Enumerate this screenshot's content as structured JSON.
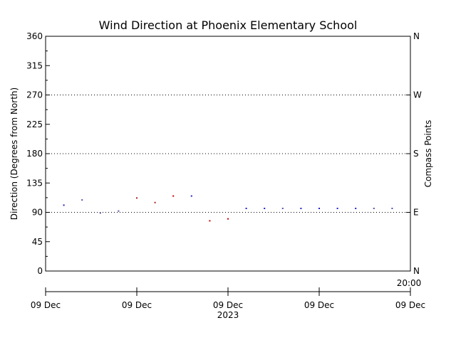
{
  "chart_data": {
    "type": "scatter",
    "title": "Wind Direction at Phoenix Elementary School",
    "ylabel": "Direction (Degrees from North)",
    "y2label": "Compass Points",
    "ylim": [
      0,
      360
    ],
    "yticks": [
      "0",
      "45",
      "90",
      "135",
      "180",
      "225",
      "270",
      "315",
      "360"
    ],
    "compass_ticks": [
      {
        "value": 0,
        "label": "N"
      },
      {
        "value": 90,
        "label": "E"
      },
      {
        "value": 180,
        "label": "S"
      },
      {
        "value": 270,
        "label": "W"
      },
      {
        "value": 360,
        "label": "N"
      }
    ],
    "gridlines_y": [
      90,
      180,
      270
    ],
    "x_tick_labels": [
      "09 Dec",
      "09 Dec",
      "09 Dec",
      "09 Dec",
      "09 Dec"
    ],
    "x_year_label": "2023",
    "x_time_label": "20:00",
    "xlim": [
      0,
      20
    ],
    "points": [
      {
        "x": 1,
        "y": 101,
        "color": "#2222cc"
      },
      {
        "x": 2,
        "y": 109,
        "color": "#5555aa"
      },
      {
        "x": 3,
        "y": 89,
        "color": "#5555aa"
      },
      {
        "x": 4,
        "y": 92,
        "color": "#5555aa"
      },
      {
        "x": 5,
        "y": 112,
        "color": "#aa2222"
      },
      {
        "x": 6,
        "y": 105,
        "color": "#aa2222"
      },
      {
        "x": 7,
        "y": 115,
        "color": "#cc0000"
      },
      {
        "x": 8,
        "y": 115,
        "color": "#2222cc"
      },
      {
        "x": 9,
        "y": 77,
        "color": "#cc0000"
      },
      {
        "x": 10,
        "y": 80,
        "color": "#cc0000"
      },
      {
        "x": 11,
        "y": 96,
        "color": "#2222cc"
      },
      {
        "x": 12,
        "y": 96,
        "color": "#2222cc"
      },
      {
        "x": 13,
        "y": 96,
        "color": "#5555aa"
      },
      {
        "x": 14,
        "y": 96,
        "color": "#2222cc"
      },
      {
        "x": 15,
        "y": 96,
        "color": "#2222cc"
      },
      {
        "x": 16,
        "y": 96,
        "color": "#2222cc"
      },
      {
        "x": 17,
        "y": 96,
        "color": "#2222cc"
      },
      {
        "x": 18,
        "y": 96,
        "color": "#5555aa"
      },
      {
        "x": 19,
        "y": 96,
        "color": "#5555aa"
      }
    ]
  }
}
